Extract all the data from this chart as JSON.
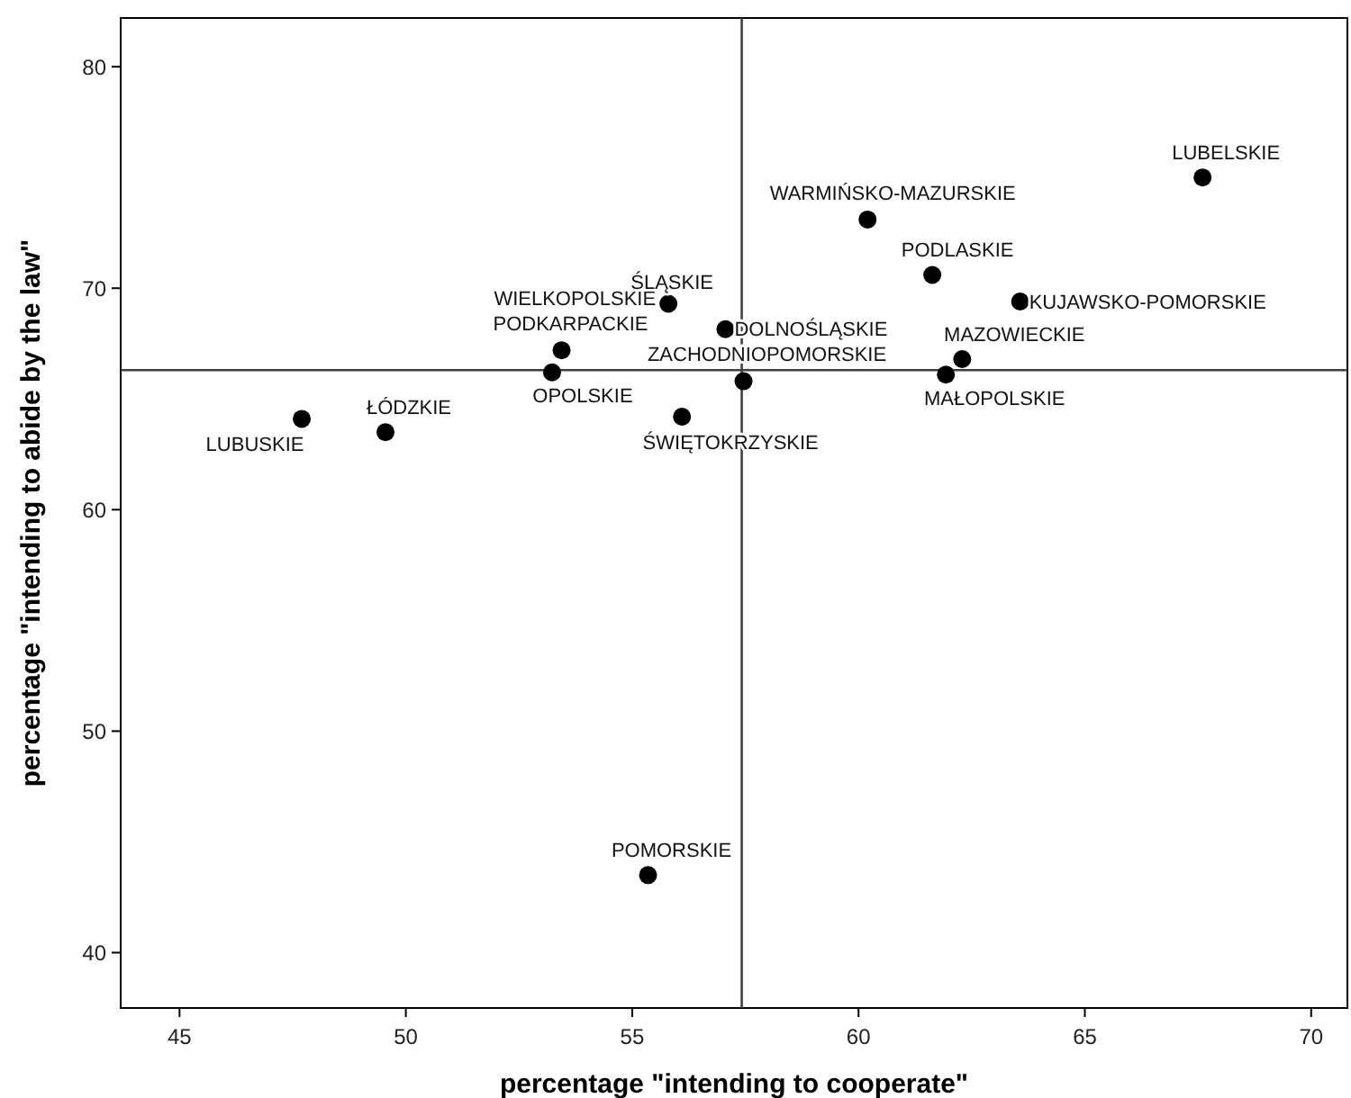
{
  "chart_data": {
    "type": "scatter",
    "xlabel": "percentage \"intending to cooperate\"",
    "ylabel": "percentage \"intending to abide by the law\"",
    "x": [
      47.7,
      49.55,
      53.23,
      53.44,
      55.8,
      57.06,
      57.46,
      56.1,
      55.35,
      60.2,
      67.6,
      61.63,
      63.57,
      62.29,
      61.93
    ],
    "series": [
      {
        "color": "#000000",
        "values": [
          64.1,
          63.5,
          66.2,
          67.2,
          69.3,
          68.15,
          65.8,
          64.2,
          43.5,
          73.1,
          75.0,
          70.6,
          69.4,
          66.8,
          66.1
        ]
      }
    ],
    "annotations": [
      {
        "text": "LUBUSKIE",
        "x": 47.7,
        "y": 64.1
      },
      {
        "text": "ŁÓDZKIE",
        "x": 49.55,
        "y": 63.5
      },
      {
        "text": "OPOLSKIE",
        "x": 53.23,
        "y": 66.2
      },
      {
        "text": "PODKARPACKIE",
        "x": 53.44,
        "y": 67.2
      },
      {
        "text": "WIELKOPOLSKIE",
        "x": 55.8,
        "y": 69.3
      },
      {
        "text": "ŚLĄSKIE",
        "x": 55.8,
        "y": 69.3
      },
      {
        "text": "DOLNOŚLĄSKIE",
        "x": 57.06,
        "y": 68.15
      },
      {
        "text": "ZACHODNIOPOMORSKIE",
        "x": 57.46,
        "y": 65.8
      },
      {
        "text": "ŚWIĘTOKRZYSKIE",
        "x": 56.1,
        "y": 64.2
      },
      {
        "text": "POMORSKIE",
        "x": 55.35,
        "y": 43.5
      },
      {
        "text": "WARMIŃSKO-MAZURSKIE",
        "x": 60.2,
        "y": 73.1
      },
      {
        "text": "LUBELSKIE",
        "x": 67.6,
        "y": 75.0
      },
      {
        "text": "PODLASKIE",
        "x": 61.63,
        "y": 70.6
      },
      {
        "text": "KUJAWSKO-POMORSKIE",
        "x": 63.57,
        "y": 69.4
      },
      {
        "text": "MAZOWIECKIE",
        "x": 62.29,
        "y": 66.8
      },
      {
        "text": "MAŁOPOLSKIE",
        "x": 61.93,
        "y": 66.1
      }
    ],
    "ref_lines": [
      {
        "axis": "x",
        "value": 57.42,
        "color": "#404040"
      },
      {
        "axis": "y",
        "value": 66.3,
        "color": "#404040"
      }
    ],
    "xlim": [
      43.7,
      70.8
    ],
    "ylim": [
      37.5,
      82.2
    ],
    "xticks": [
      45,
      50,
      55,
      60,
      65,
      70
    ],
    "yticks": [
      40,
      50,
      60,
      70,
      80
    ],
    "marker": "circle",
    "grid": false
  }
}
